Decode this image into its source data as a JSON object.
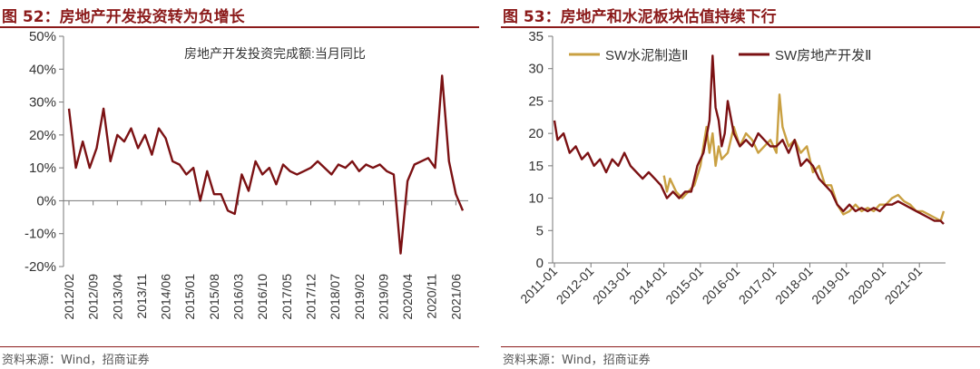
{
  "left": {
    "title": "图 52：房地产开发投资转为负增长",
    "source": "资料来源：Wind，招商证券",
    "chart_data": {
      "type": "line",
      "title": "",
      "xlabel": "",
      "ylabel": "",
      "ylim": [
        -20,
        50
      ],
      "yticks": [
        "50%",
        "40%",
        "30%",
        "20%",
        "10%",
        "0%",
        "-10%",
        "-20%"
      ],
      "ytick_values": [
        50,
        40,
        30,
        20,
        10,
        0,
        -10,
        -20
      ],
      "xticks": [
        "2012/02",
        "2012/09",
        "2013/04",
        "2013/11",
        "2014/06",
        "2015/01",
        "2015/08",
        "2016/03",
        "2016/10",
        "2017/05",
        "2017/12",
        "2018/07",
        "2019/02",
        "2019/09",
        "2020/04",
        "2020/11",
        "2021/06"
      ],
      "series": [
        {
          "name": "房地产开发投资完成额:当月同比",
          "color": "#7b1113",
          "x": [
            "2012/02",
            "2012/04",
            "2012/06",
            "2012/08",
            "2012/10",
            "2012/12",
            "2013/02",
            "2013/04",
            "2013/06",
            "2013/08",
            "2013/10",
            "2013/12",
            "2014/02",
            "2014/04",
            "2014/06",
            "2014/08",
            "2014/10",
            "2014/12",
            "2015/02",
            "2015/04",
            "2015/06",
            "2015/08",
            "2015/10",
            "2015/12",
            "2016/02",
            "2016/04",
            "2016/06",
            "2016/08",
            "2016/10",
            "2016/12",
            "2017/02",
            "2017/04",
            "2017/06",
            "2017/08",
            "2017/10",
            "2017/12",
            "2018/02",
            "2018/04",
            "2018/06",
            "2018/08",
            "2018/10",
            "2018/12",
            "2019/02",
            "2019/04",
            "2019/06",
            "2019/08",
            "2019/10",
            "2019/12",
            "2020/02",
            "2020/04",
            "2020/06",
            "2020/08",
            "2020/10",
            "2020/12",
            "2021/02",
            "2021/04",
            "2021/06",
            "2021/08"
          ],
          "values": [
            28,
            10,
            18,
            10,
            16,
            28,
            12,
            20,
            18,
            22,
            16,
            20,
            14,
            22,
            19,
            12,
            11,
            8,
            10,
            0,
            9,
            2,
            2,
            -3,
            -4,
            8,
            3,
            12,
            8,
            10,
            5,
            11,
            9,
            8,
            9,
            10,
            12,
            10,
            8,
            11,
            10,
            12,
            9,
            11,
            10,
            11,
            9,
            8,
            -16,
            6,
            11,
            12,
            13,
            10,
            38,
            12,
            2,
            -3
          ]
        }
      ],
      "legend": "top-center",
      "grid": false
    }
  },
  "right": {
    "title": "图 53：房地产和水泥板块估值持续下行",
    "source": "资料来源：Wind，招商证券",
    "chart_data": {
      "type": "line",
      "title": "",
      "xlabel": "",
      "ylabel": "",
      "ylim": [
        0,
        35
      ],
      "yticks": [
        "35",
        "30",
        "25",
        "20",
        "15",
        "10",
        "5",
        "0"
      ],
      "ytick_values": [
        35,
        30,
        25,
        20,
        15,
        10,
        5,
        0
      ],
      "xticks": [
        "2011-01",
        "2012-01",
        "2013-01",
        "2014-01",
        "2015-01",
        "2016-01",
        "2017-01",
        "2018-01",
        "2019-01",
        "2020-01",
        "2021-01"
      ],
      "x_range": [
        "2011-01",
        "2021-09"
      ],
      "series": [
        {
          "name": "SW水泥制造Ⅱ",
          "color": "#c9a042",
          "x": [
            "2014-01",
            "2014-02",
            "2014-03",
            "2014-05",
            "2014-07",
            "2014-09",
            "2014-11",
            "2015-01",
            "2015-02",
            "2015-03",
            "2015-04",
            "2015-05",
            "2015-06",
            "2015-07",
            "2015-08",
            "2015-10",
            "2015-12",
            "2016-02",
            "2016-04",
            "2016-06",
            "2016-08",
            "2016-10",
            "2016-12",
            "2017-02",
            "2017-03",
            "2017-04",
            "2017-06",
            "2017-08",
            "2017-10",
            "2017-12",
            "2018-02",
            "2018-04",
            "2018-06",
            "2018-08",
            "2018-10",
            "2018-12",
            "2019-02",
            "2019-04",
            "2019-06",
            "2019-08",
            "2019-10",
            "2019-12",
            "2020-02",
            "2020-04",
            "2020-06",
            "2020-08",
            "2020-10",
            "2020-12",
            "2021-02",
            "2021-04",
            "2021-06",
            "2021-08",
            "2021-09"
          ],
          "values": [
            13.5,
            11,
            13,
            11,
            10,
            11,
            12,
            15,
            18,
            21,
            17,
            20,
            15,
            18,
            16,
            17,
            21,
            18,
            20,
            19,
            17,
            18,
            19,
            17,
            26,
            21,
            18,
            19,
            17,
            18,
            14,
            15,
            12,
            12,
            9,
            7.5,
            8,
            9,
            8,
            8.5,
            8,
            9,
            9,
            10,
            10.5,
            9.5,
            9,
            8,
            8,
            7.5,
            7,
            6.5,
            8
          ]
        },
        {
          "name": "SW房地产开发Ⅱ",
          "color": "#7b1113",
          "x": [
            "2011-01",
            "2011-02",
            "2011-04",
            "2011-06",
            "2011-08",
            "2011-10",
            "2011-12",
            "2012-02",
            "2012-04",
            "2012-06",
            "2012-08",
            "2012-10",
            "2012-12",
            "2013-02",
            "2013-04",
            "2013-06",
            "2013-08",
            "2013-10",
            "2013-12",
            "2014-02",
            "2014-04",
            "2014-06",
            "2014-08",
            "2014-10",
            "2014-12",
            "2015-02",
            "2015-04",
            "2015-05",
            "2015-06",
            "2015-07",
            "2015-08",
            "2015-09",
            "2015-10",
            "2015-12",
            "2016-02",
            "2016-04",
            "2016-06",
            "2016-08",
            "2016-10",
            "2016-12",
            "2017-02",
            "2017-04",
            "2017-06",
            "2017-08",
            "2017-10",
            "2017-12",
            "2018-02",
            "2018-04",
            "2018-06",
            "2018-08",
            "2018-10",
            "2018-12",
            "2019-02",
            "2019-04",
            "2019-06",
            "2019-08",
            "2019-10",
            "2019-12",
            "2020-02",
            "2020-04",
            "2020-06",
            "2020-08",
            "2020-10",
            "2020-12",
            "2021-02",
            "2021-04",
            "2021-06",
            "2021-08",
            "2021-09"
          ],
          "values": [
            22,
            19,
            20,
            17,
            18,
            16,
            17,
            15,
            16,
            14,
            16,
            15,
            17,
            15,
            14,
            13,
            14,
            13,
            12,
            10,
            11,
            10,
            11,
            11,
            15,
            17,
            22,
            32,
            24,
            22,
            18,
            20,
            25,
            20,
            18,
            19,
            18,
            20,
            19,
            18,
            18,
            19,
            17,
            19,
            15,
            16,
            15,
            13,
            12,
            11,
            9,
            8,
            9,
            8,
            8.5,
            8,
            8.5,
            8,
            9,
            9,
            9.5,
            9,
            8.5,
            8,
            7.5,
            7,
            6.5,
            6.5,
            6
          ]
        }
      ],
      "legend": "top-center",
      "grid": false
    }
  }
}
